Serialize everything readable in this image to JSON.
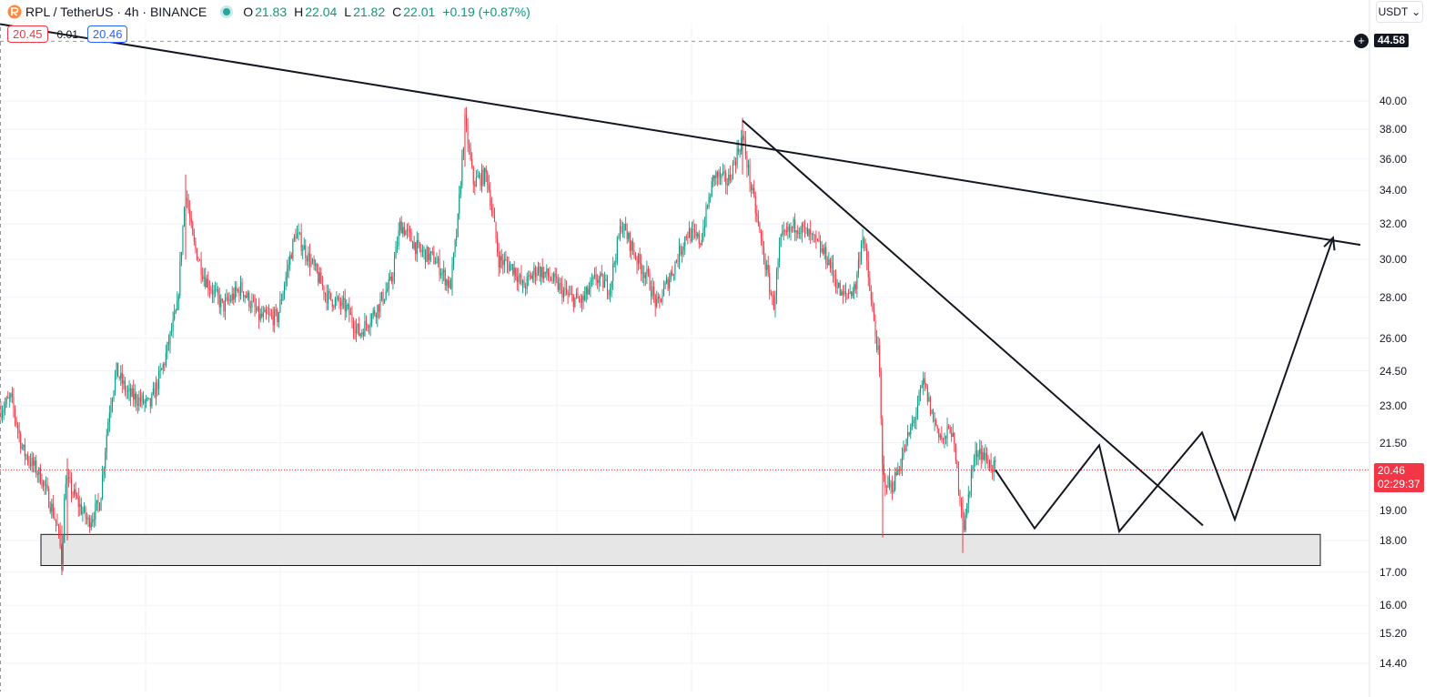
{
  "header": {
    "symbol_text": "RPL / TetherUS · 4h · BINANCE",
    "o_label": "O",
    "o_value": "21.83",
    "h_label": "H",
    "h_value": "22.04",
    "l_label": "L",
    "l_value": "21.82",
    "c_label": "C",
    "c_value": "22.01",
    "change": "+0.19 (+0.87%)"
  },
  "quote": {
    "bid": "20.45",
    "spread": "0.01",
    "ask": "20.46"
  },
  "currency_button": {
    "label": "USDT",
    "icon": "chevron-down-icon"
  },
  "crosshair_tag": "44.58",
  "last_price": {
    "price": "20.46",
    "countdown": "02:29:37"
  },
  "colors": {
    "up": "#089981",
    "down": "#f23645",
    "line": "#131722",
    "zone_fill": "#e6e6e6"
  },
  "chart_data": {
    "type": "candlestick",
    "symbol": "RPL / TetherUS",
    "interval": "4h",
    "exchange": "BINANCE",
    "y_scale": "log",
    "ylim": [
      13.7,
      47
    ],
    "y_ticks": [
      {
        "value": 40.0,
        "label": "40.00"
      },
      {
        "value": 38.0,
        "label": "38.00"
      },
      {
        "value": 36.0,
        "label": "36.00"
      },
      {
        "value": 34.0,
        "label": "34.00"
      },
      {
        "value": 32.0,
        "label": "32.00"
      },
      {
        "value": 30.0,
        "label": "30.00"
      },
      {
        "value": 28.0,
        "label": "28.00"
      },
      {
        "value": 26.0,
        "label": "26.00"
      },
      {
        "value": 24.5,
        "label": "24.50"
      },
      {
        "value": 23.0,
        "label": "23.00"
      },
      {
        "value": 21.5,
        "label": "21.50"
      },
      {
        "value": 19.0,
        "label": "19.00"
      },
      {
        "value": 18.0,
        "label": "18.00"
      },
      {
        "value": 17.0,
        "label": "17.00"
      },
      {
        "value": 16.0,
        "label": "16.00"
      },
      {
        "value": 15.2,
        "label": "15.20"
      },
      {
        "value": 14.4,
        "label": "14.40"
      }
    ],
    "price_path": [
      [
        0,
        22.8
      ],
      [
        12,
        23.3
      ],
      [
        25,
        21.2
      ],
      [
        45,
        20.2
      ],
      [
        58,
        19.0
      ],
      [
        64,
        18.3
      ],
      [
        68,
        17.3
      ],
      [
        72,
        20.2
      ],
      [
        82,
        19.5
      ],
      [
        97,
        18.6
      ],
      [
        110,
        19.3
      ],
      [
        120,
        22.8
      ],
      [
        128,
        24.5
      ],
      [
        140,
        23.5
      ],
      [
        165,
        23.0
      ],
      [
        180,
        24.8
      ],
      [
        195,
        27.5
      ],
      [
        204,
        34.0
      ],
      [
        212,
        31.0
      ],
      [
        225,
        29.0
      ],
      [
        245,
        27.5
      ],
      [
        265,
        28.5
      ],
      [
        285,
        27.0
      ],
      [
        305,
        27.0
      ],
      [
        325,
        31.5
      ],
      [
        345,
        29.5
      ],
      [
        360,
        28.0
      ],
      [
        380,
        27.5
      ],
      [
        395,
        26.2
      ],
      [
        415,
        27.5
      ],
      [
        430,
        28.8
      ],
      [
        440,
        32.0
      ],
      [
        460,
        30.5
      ],
      [
        478,
        30.0
      ],
      [
        495,
        28.5
      ],
      [
        503,
        32.0
      ],
      [
        511,
        38.5
      ],
      [
        520,
        34.5
      ],
      [
        535,
        35.0
      ],
      [
        548,
        30.0
      ],
      [
        565,
        29.5
      ],
      [
        575,
        28.5
      ],
      [
        590,
        29.5
      ],
      [
        605,
        29.0
      ],
      [
        625,
        28.0
      ],
      [
        640,
        27.8
      ],
      [
        655,
        29.0
      ],
      [
        670,
        28.5
      ],
      [
        683,
        32.0
      ],
      [
        700,
        30.0
      ],
      [
        712,
        29.0
      ],
      [
        722,
        27.5
      ],
      [
        740,
        29.5
      ],
      [
        755,
        31.5
      ],
      [
        770,
        31.0
      ],
      [
        785,
        35.0
      ],
      [
        800,
        34.5
      ],
      [
        816,
        37.5
      ],
      [
        826,
        34.0
      ],
      [
        840,
        30.0
      ],
      [
        850,
        27.5
      ],
      [
        858,
        31.0
      ],
      [
        875,
        32.0
      ],
      [
        895,
        31.0
      ],
      [
        910,
        30.0
      ],
      [
        925,
        28.0
      ],
      [
        940,
        28.5
      ],
      [
        948,
        31.5
      ],
      [
        958,
        27.5
      ],
      [
        966,
        25.0
      ],
      [
        970,
        20.2
      ],
      [
        980,
        19.8
      ],
      [
        992,
        21.0
      ],
      [
        1005,
        22.5
      ],
      [
        1015,
        24.0
      ],
      [
        1025,
        22.5
      ],
      [
        1037,
        21.5
      ],
      [
        1045,
        22.2
      ],
      [
        1055,
        19.5
      ],
      [
        1060,
        18.4
      ],
      [
        1068,
        20.5
      ],
      [
        1075,
        21.3
      ],
      [
        1085,
        20.8
      ],
      [
        1094,
        20.46
      ]
    ],
    "annotations": {
      "resistance_line": [
        [
          0,
          46.0
        ],
        [
          1495,
          30.8
        ]
      ],
      "falling_line": [
        [
          816,
          38.6
        ],
        [
          1322,
          18.5
        ]
      ],
      "support_zone": {
        "x_start": 45,
        "x_end": 1451,
        "y_top": 18.2,
        "y_bottom": 17.2
      },
      "projection": [
        [
          1094,
          20.46
        ],
        [
          1137,
          18.4
        ],
        [
          1208,
          21.4
        ],
        [
          1230,
          18.3
        ],
        [
          1321,
          21.9
        ],
        [
          1357,
          18.7
        ],
        [
          1465,
          31.2
        ]
      ],
      "last_price_line": 20.46,
      "crosshair_price": 44.58
    }
  }
}
